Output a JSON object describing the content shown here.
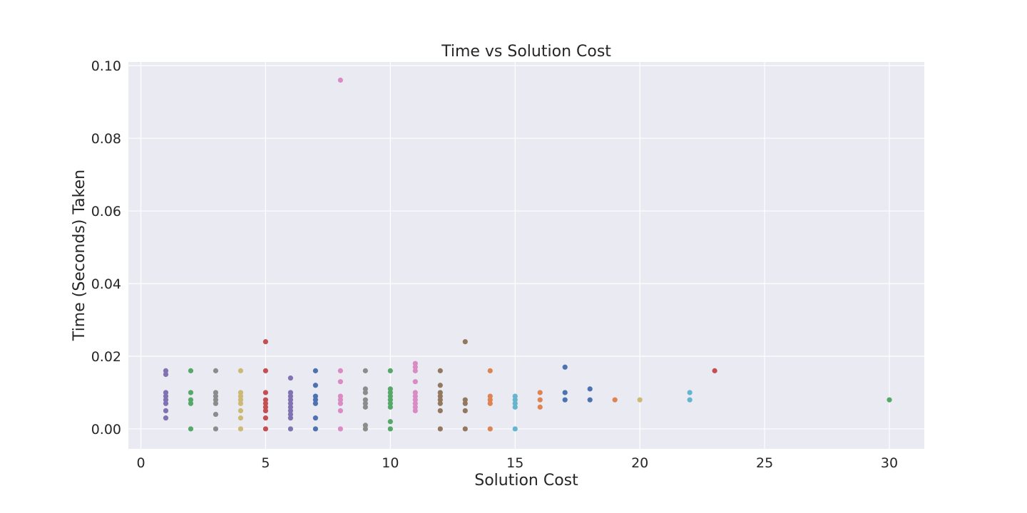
{
  "chart_data": {
    "type": "scatter",
    "title": "Time vs Solution Cost",
    "xlabel": "Solution Cost",
    "ylabel": "Time (Seconds) Taken",
    "xlim": [
      -0.5,
      31.4
    ],
    "ylim": [
      -0.0055,
      0.101
    ],
    "xticks": [
      0,
      5,
      10,
      15,
      20,
      25,
      30
    ],
    "xtick_labels": [
      "0",
      "5",
      "10",
      "15",
      "20",
      "25",
      "30"
    ],
    "yticks": [
      0.0,
      0.02,
      0.04,
      0.06,
      0.08,
      0.1
    ],
    "ytick_labels": [
      "0.00",
      "0.02",
      "0.04",
      "0.06",
      "0.08",
      "0.10"
    ],
    "grid": true,
    "background": "#eaeaf2",
    "series": [
      {
        "color": "#8172b2",
        "points": [
          [
            1,
            0.003
          ],
          [
            1,
            0.005
          ],
          [
            1,
            0.007
          ],
          [
            1,
            0.008
          ],
          [
            1,
            0.009
          ],
          [
            1,
            0.01
          ],
          [
            1,
            0.015
          ],
          [
            1,
            0.016
          ]
        ]
      },
      {
        "color": "#55a868",
        "points": [
          [
            2,
            0.0
          ],
          [
            2,
            0.007
          ],
          [
            2,
            0.008
          ],
          [
            2,
            0.01
          ],
          [
            2,
            0.016
          ]
        ]
      },
      {
        "color": "#8c8c8c",
        "points": [
          [
            3,
            0.0
          ],
          [
            3,
            0.004
          ],
          [
            3,
            0.007
          ],
          [
            3,
            0.008
          ],
          [
            3,
            0.009
          ],
          [
            3,
            0.01
          ],
          [
            3,
            0.016
          ]
        ]
      },
      {
        "color": "#ccb974",
        "points": [
          [
            4,
            0.0
          ],
          [
            4,
            0.003
          ],
          [
            4,
            0.005
          ],
          [
            4,
            0.007
          ],
          [
            4,
            0.008
          ],
          [
            4,
            0.009
          ],
          [
            4,
            0.01
          ],
          [
            4,
            0.016
          ]
        ]
      },
      {
        "color": "#c44e52",
        "points": [
          [
            5,
            0.0
          ],
          [
            5,
            0.003
          ],
          [
            5,
            0.005
          ],
          [
            5,
            0.006
          ],
          [
            5,
            0.007
          ],
          [
            5,
            0.008
          ],
          [
            5,
            0.01
          ],
          [
            5,
            0.016
          ],
          [
            5,
            0.024
          ]
        ]
      },
      {
        "color": "#8172b2",
        "points": [
          [
            6,
            0.0
          ],
          [
            6,
            0.003
          ],
          [
            6,
            0.004
          ],
          [
            6,
            0.005
          ],
          [
            6,
            0.006
          ],
          [
            6,
            0.007
          ],
          [
            6,
            0.008
          ],
          [
            6,
            0.009
          ],
          [
            6,
            0.01
          ],
          [
            6,
            0.014
          ]
        ]
      },
      {
        "color": "#4c72b0",
        "points": [
          [
            7,
            0.0
          ],
          [
            7,
            0.003
          ],
          [
            7,
            0.007
          ],
          [
            7,
            0.008
          ],
          [
            7,
            0.009
          ],
          [
            7,
            0.012
          ],
          [
            7,
            0.016
          ]
        ]
      },
      {
        "color": "#da8bc3",
        "points": [
          [
            8,
            0.0
          ],
          [
            8,
            0.005
          ],
          [
            8,
            0.007
          ],
          [
            8,
            0.008
          ],
          [
            8,
            0.009
          ],
          [
            8,
            0.013
          ],
          [
            8,
            0.016
          ],
          [
            8,
            0.096
          ]
        ]
      },
      {
        "color": "#8c8c8c",
        "points": [
          [
            9,
            0.0
          ],
          [
            9,
            0.001
          ],
          [
            9,
            0.006
          ],
          [
            9,
            0.007
          ],
          [
            9,
            0.008
          ],
          [
            9,
            0.01
          ],
          [
            9,
            0.011
          ],
          [
            9,
            0.016
          ]
        ]
      },
      {
        "color": "#55a868",
        "points": [
          [
            10,
            0.0
          ],
          [
            10,
            0.002
          ],
          [
            10,
            0.006
          ],
          [
            10,
            0.007
          ],
          [
            10,
            0.008
          ],
          [
            10,
            0.009
          ],
          [
            10,
            0.01
          ],
          [
            10,
            0.011
          ],
          [
            10,
            0.016
          ]
        ]
      },
      {
        "color": "#da8bc3",
        "points": [
          [
            11,
            0.005
          ],
          [
            11,
            0.006
          ],
          [
            11,
            0.007
          ],
          [
            11,
            0.008
          ],
          [
            11,
            0.009
          ],
          [
            11,
            0.01
          ],
          [
            11,
            0.013
          ],
          [
            11,
            0.016
          ],
          [
            11,
            0.017
          ],
          [
            11,
            0.018
          ]
        ]
      },
      {
        "color": "#937860",
        "points": [
          [
            12,
            0.0
          ],
          [
            12,
            0.005
          ],
          [
            12,
            0.007
          ],
          [
            12,
            0.008
          ],
          [
            12,
            0.009
          ],
          [
            12,
            0.01
          ],
          [
            12,
            0.012
          ],
          [
            12,
            0.016
          ]
        ]
      },
      {
        "color": "#937860",
        "points": [
          [
            13,
            0.0
          ],
          [
            13,
            0.005
          ],
          [
            13,
            0.007
          ],
          [
            13,
            0.008
          ],
          [
            13,
            0.024
          ]
        ]
      },
      {
        "color": "#dd8452",
        "points": [
          [
            14,
            0.0
          ],
          [
            14,
            0.007
          ],
          [
            14,
            0.008
          ],
          [
            14,
            0.009
          ],
          [
            14,
            0.016
          ]
        ]
      },
      {
        "color": "#64b5cd",
        "points": [
          [
            15,
            0.0
          ],
          [
            15,
            0.006
          ],
          [
            15,
            0.007
          ],
          [
            15,
            0.008
          ],
          [
            15,
            0.009
          ]
        ]
      },
      {
        "color": "#dd8452",
        "points": [
          [
            16,
            0.006
          ],
          [
            16,
            0.008
          ],
          [
            16,
            0.01
          ]
        ]
      },
      {
        "color": "#4c72b0",
        "points": [
          [
            17,
            0.008
          ],
          [
            17,
            0.01
          ],
          [
            17,
            0.017
          ]
        ]
      },
      {
        "color": "#4c72b0",
        "points": [
          [
            18,
            0.008
          ],
          [
            18,
            0.011
          ]
        ]
      },
      {
        "color": "#dd8452",
        "points": [
          [
            19,
            0.008
          ]
        ]
      },
      {
        "color": "#ccb974",
        "points": [
          [
            20,
            0.008
          ]
        ]
      },
      {
        "color": "#64b5cd",
        "points": [
          [
            22,
            0.008
          ],
          [
            22,
            0.01
          ]
        ]
      },
      {
        "color": "#c44e52",
        "points": [
          [
            23,
            0.016
          ]
        ]
      },
      {
        "color": "#55a868",
        "points": [
          [
            30,
            0.008
          ]
        ]
      }
    ]
  }
}
